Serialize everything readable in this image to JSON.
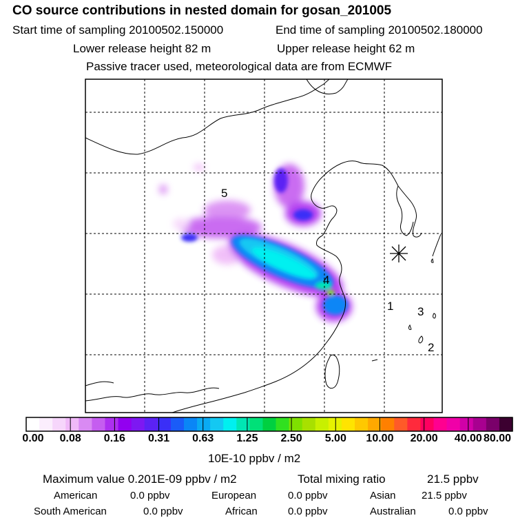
{
  "header": {
    "title": "CO  source contributions in nested domain for gosan_201005",
    "start_label": "Start time of sampling 20100502.150000",
    "end_label": "End time of sampling 20100502.180000",
    "lower_label": "Lower release height   82 m",
    "upper_label": "Upper release height   62 m",
    "note": "Passive tracer used, meteorological data are from ECMWF"
  },
  "map": {
    "markers": [
      "1",
      "2",
      "3",
      "4",
      "5"
    ],
    "receptor_symbol": "receptor-star"
  },
  "colorbar": {
    "colors": [
      "#ffffff",
      "#fbeefd",
      "#f6d6fb",
      "#f0b9f8",
      "#d98af3",
      "#c55df0",
      "#ad2ff0",
      "#9200f0",
      "#7d18f2",
      "#5b22f4",
      "#3a2ff7",
      "#1a5cf8",
      "#0a86f6",
      "#0aaaf3",
      "#14c8f2",
      "#00f0f0",
      "#00e6b4",
      "#00e078",
      "#00d040",
      "#30e020",
      "#7fe000",
      "#a8e000",
      "#c8f000",
      "#e6f200",
      "#ffe400",
      "#ffc800",
      "#ffa800",
      "#ff8000",
      "#ff5a28",
      "#ff2a3c",
      "#ff0060",
      "#ff0090",
      "#f000a8",
      "#d000a8",
      "#a80090",
      "#7a006a",
      "#3c0030"
    ],
    "labels": [
      "0.00",
      "0.08",
      "0.16",
      "0.31",
      "0.63",
      "1.25",
      "2.50",
      "5.00",
      "10.00",
      "20.00",
      "40.00",
      "80.00"
    ],
    "unit": "10E-10 ppbv / m2"
  },
  "stats": {
    "max_label": "Maximum value  0.201E-09 ppbv / m2",
    "total_label": "Total mixing ratio",
    "total_value": "21.5 ppbv",
    "american_label": "American",
    "american_value": "0.0 ppbv",
    "european_label": "European",
    "european_value": "0.0 ppbv",
    "asian_label": "Asian",
    "asian_value": "21.5 ppbv",
    "south_american_label": "South American",
    "south_american_value": "0.0 ppbv",
    "african_label": "African",
    "african_value": "0.0 ppbv",
    "australian_label": "Australian",
    "australian_value": "0.0 ppbv"
  }
}
